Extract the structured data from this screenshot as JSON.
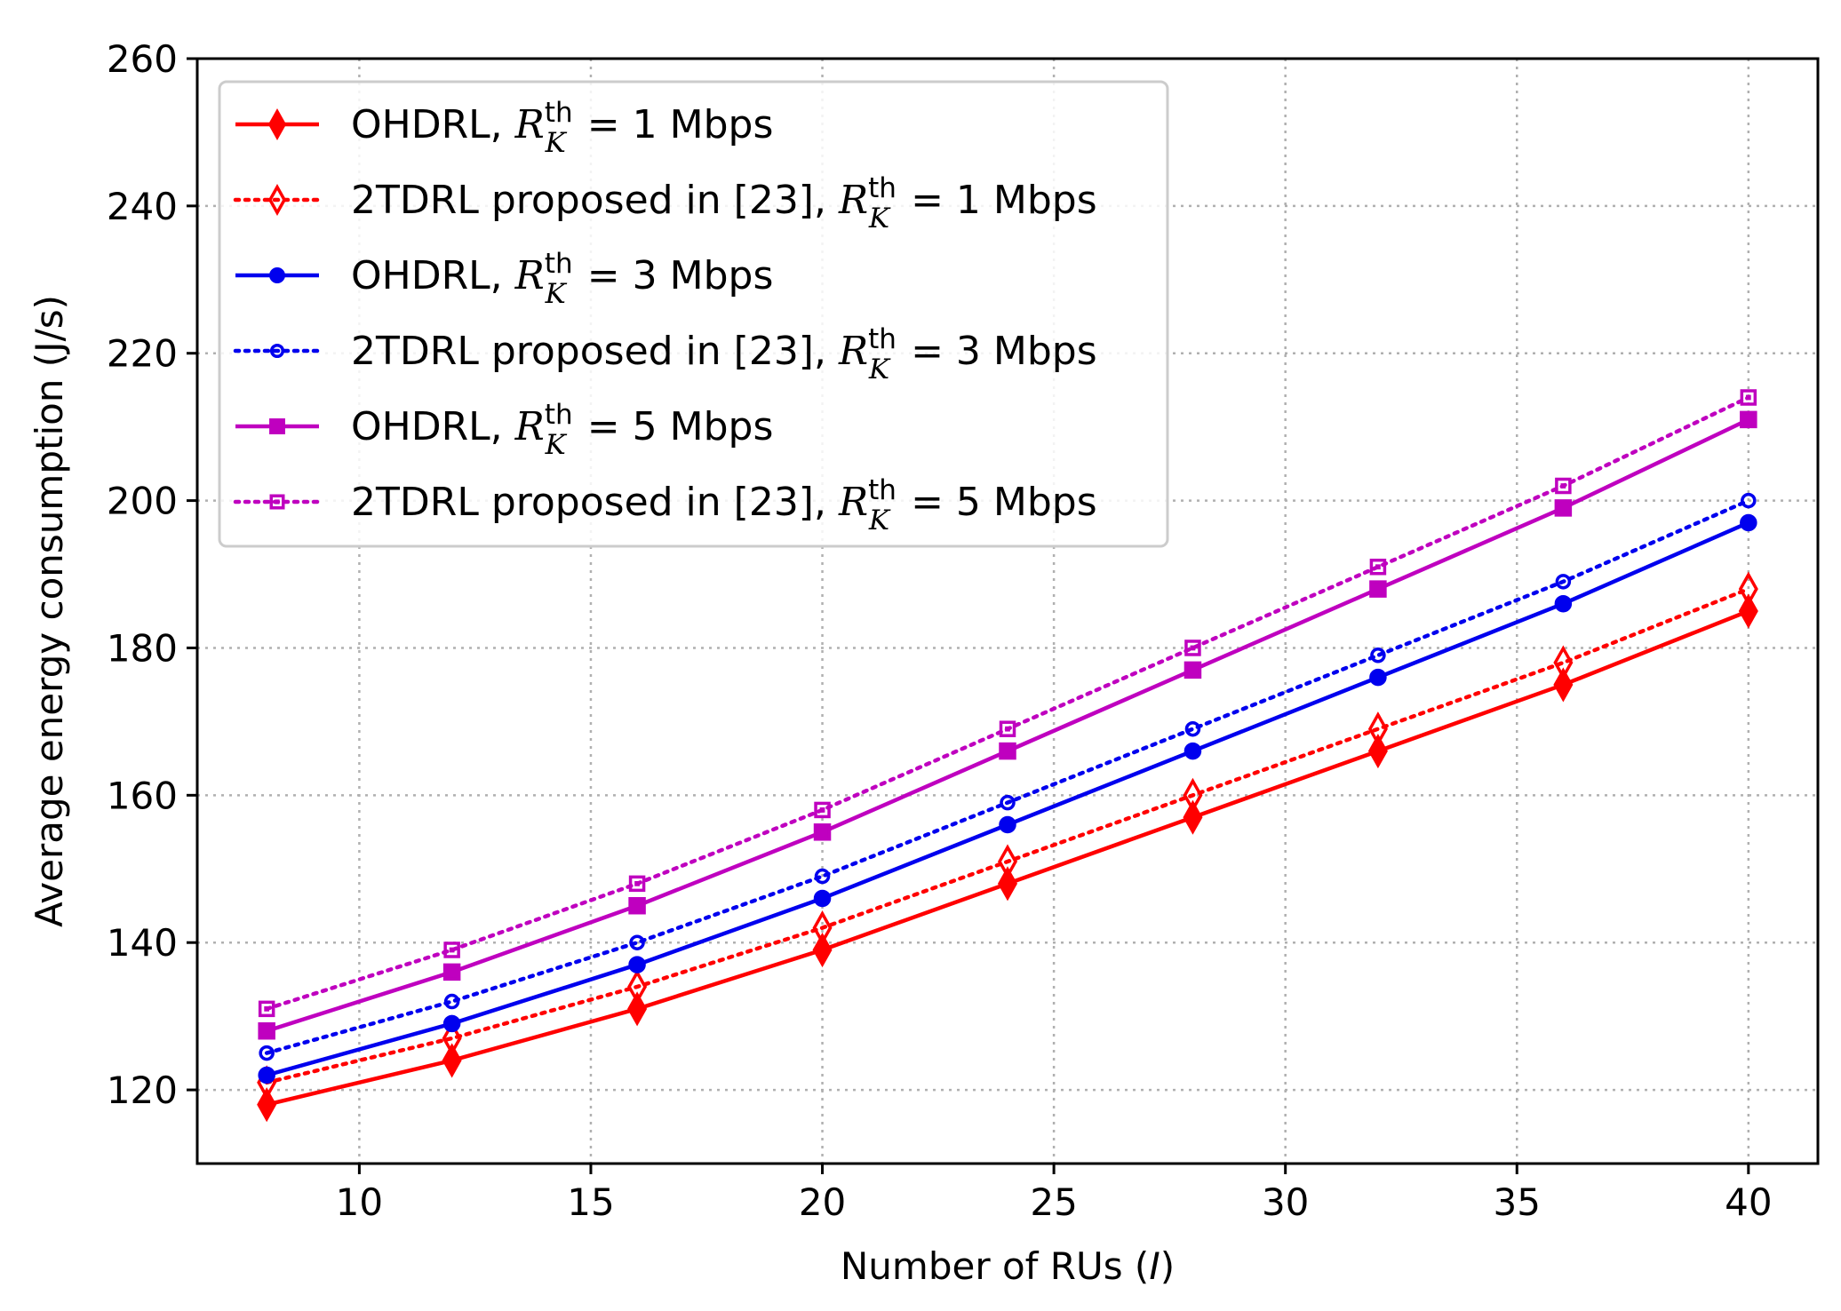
{
  "chart_data": {
    "type": "line",
    "title": "",
    "xlabel": "Number of RUs (I)",
    "xlabel_prefix": "Number of RUs (",
    "xlabel_var": "I",
    "xlabel_suffix": ")",
    "ylabel": "Average energy consumption (J/s)",
    "xlim": [
      6.5,
      41.5
    ],
    "ylim": [
      110,
      260
    ],
    "xticks": [
      10,
      15,
      20,
      25,
      30,
      35,
      40
    ],
    "yticks": [
      120,
      140,
      160,
      180,
      200,
      220,
      240,
      260
    ],
    "grid": true,
    "legend_position": "top-left",
    "x": [
      8,
      12,
      16,
      20,
      24,
      28,
      32,
      36,
      40
    ],
    "series": [
      {
        "name": "OHDRL, R_K^th = 1 Mbps",
        "prefix": "OHDRL, ",
        "suffix": " = 1 Mbps",
        "color": "#ff0000",
        "linestyle": "solid",
        "marker": "diamond",
        "filled": true,
        "values": [
          118,
          124,
          131,
          139,
          148,
          157,
          166,
          175,
          185
        ]
      },
      {
        "name": "2TDRL proposed in [23], R_K^th = 1 Mbps",
        "prefix": "2TDRL proposed in [23], ",
        "suffix": " = 1 Mbps",
        "color": "#ff0000",
        "linestyle": "dotted",
        "marker": "diamond",
        "filled": false,
        "values": [
          121,
          127,
          134,
          142,
          151,
          160,
          169,
          178,
          188
        ]
      },
      {
        "name": "OHDRL, R_K^th = 3 Mbps",
        "prefix": "OHDRL, ",
        "suffix": " = 3 Mbps",
        "color": "#0000ee",
        "linestyle": "solid",
        "marker": "circle",
        "filled": true,
        "values": [
          122,
          129,
          137,
          146,
          156,
          166,
          176,
          186,
          197
        ]
      },
      {
        "name": "2TDRL proposed in [23], R_K^th = 3 Mbps",
        "prefix": "2TDRL proposed in [23], ",
        "suffix": " = 3 Mbps",
        "color": "#0000ee",
        "linestyle": "dotted",
        "marker": "circle",
        "filled": false,
        "values": [
          125,
          132,
          140,
          149,
          159,
          169,
          179,
          189,
          200
        ]
      },
      {
        "name": "OHDRL, R_K^th = 5 Mbps",
        "prefix": "OHDRL, ",
        "suffix": " = 5 Mbps",
        "color": "#bf00bf",
        "linestyle": "solid",
        "marker": "square",
        "filled": true,
        "values": [
          128,
          136,
          145,
          155,
          166,
          177,
          188,
          199,
          211
        ]
      },
      {
        "name": "2TDRL proposed in [23], R_K^th = 5 Mbps",
        "prefix": "2TDRL proposed in [23], ",
        "suffix": " = 5 Mbps",
        "color": "#bf00bf",
        "linestyle": "dotted",
        "marker": "square",
        "filled": false,
        "values": [
          131,
          139,
          148,
          158,
          169,
          180,
          191,
          202,
          214
        ]
      }
    ]
  }
}
